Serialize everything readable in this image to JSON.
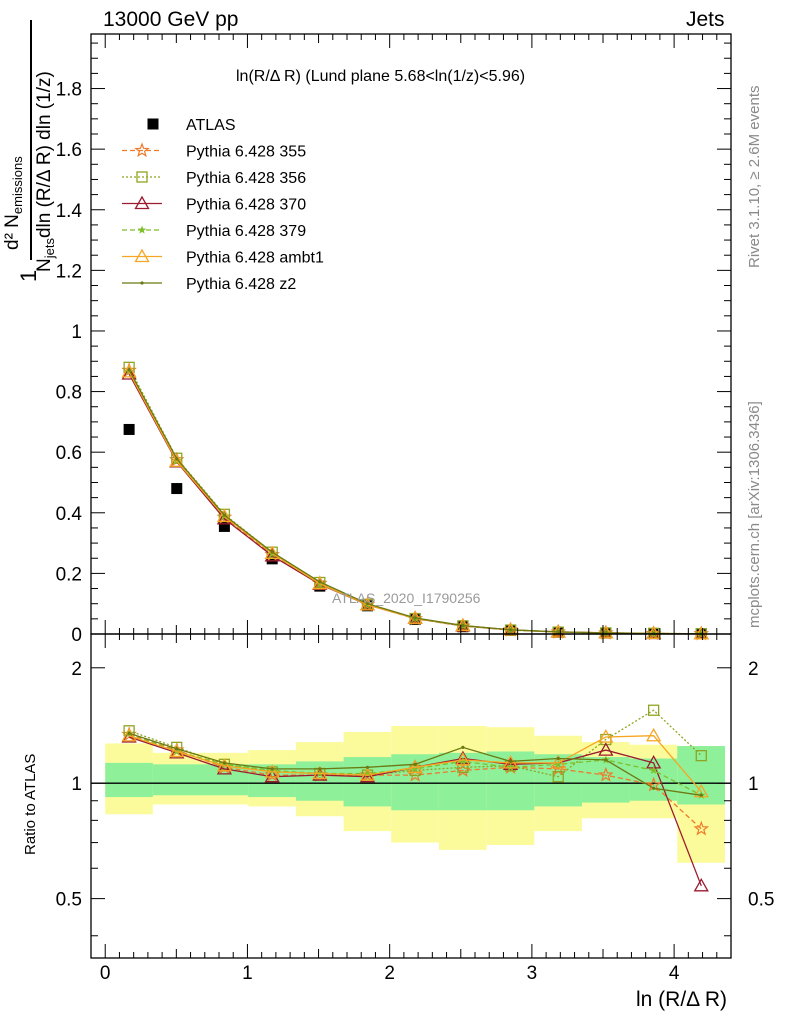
{
  "header": {
    "left": "13000 GeV pp",
    "right": "Jets"
  },
  "side_labels": {
    "rivet": "Rivet 3.1.10, ≥ 2.6M events",
    "mcplots": "mcplots.cern.ch [arXiv:1306.3436]"
  },
  "plot_title": "ln(R/Δ R) (Lund plane 5.68<ln(1/z)<5.96)",
  "watermark": "ATLAS_2020_I1790256",
  "y_label_main": {
    "numerator": "d² N",
    "numerator_sub": "emissions",
    "denominator": "N",
    "denominator_sub": "jets",
    "denominator_rest": "dln (R/Δ R) dln (1/z)",
    "prefactor": "1"
  },
  "y_label_ratio": "Ratio to ATLAS",
  "x_label": "ln (R/Δ R)",
  "colors": {
    "atlas": "#000000",
    "p355": "#ee7a2a",
    "p356": "#8ea522",
    "p370": "#9b1b2f",
    "p379": "#7fbf2a",
    "ambt1": "#f5a623",
    "z2": "#6b7a12",
    "band_green": "#8ff09a",
    "band_yellow": "#fbfb9c"
  },
  "chart_data": [
    {
      "type": "scatter",
      "panel": "main",
      "xlim": [
        -0.1,
        4.4
      ],
      "ylim": [
        0,
        1.98
      ],
      "yticks": [
        0,
        0.2,
        0.4,
        0.6,
        0.8,
        1,
        1.2,
        1.4,
        1.6,
        1.8
      ],
      "ytick_labels": [
        "0",
        "0.2",
        "0.4",
        "0.6",
        "0.8",
        "1",
        "1.2",
        "1.4",
        "1.6",
        "1.8"
      ],
      "x": [
        0.168,
        0.503,
        0.838,
        1.174,
        1.509,
        1.844,
        2.179,
        2.515,
        2.85,
        3.185,
        3.52,
        3.856,
        4.191
      ],
      "series": [
        {
          "name": "ATLAS",
          "key": "atlas",
          "style": "marker",
          "values": [
            0.675,
            0.48,
            0.355,
            0.248,
            0.158,
            0.093,
            0.048,
            0.024,
            0.012,
            0.006,
            0.003,
            0.0015,
            0.0007
          ]
        },
        {
          "name": "Pythia 6.428 355",
          "key": "p355",
          "style": "dashed",
          "marker": "star",
          "values": [
            0.87,
            0.575,
            0.385,
            0.262,
            0.167,
            0.097,
            0.05,
            0.026,
            0.013,
            0.0065,
            0.0032,
            0.0015,
            0.0005
          ]
        },
        {
          "name": "Pythia 6.428 356",
          "key": "p356",
          "style": "dotted",
          "marker": "square",
          "values": [
            0.88,
            0.58,
            0.395,
            0.27,
            0.17,
            0.098,
            0.051,
            0.027,
            0.013,
            0.0062,
            0.0035,
            0.0023,
            0.0008
          ]
        },
        {
          "name": "Pythia 6.428 370",
          "key": "p370",
          "style": "solid",
          "marker": "triangle",
          "values": [
            0.858,
            0.568,
            0.38,
            0.258,
            0.164,
            0.096,
            0.052,
            0.027,
            0.0135,
            0.0068,
            0.0037,
            0.0017,
            0.0004
          ]
        },
        {
          "name": "Pythia 6.428 379",
          "key": "p379",
          "style": "dashed",
          "marker": "smallstar",
          "values": [
            0.868,
            0.572,
            0.39,
            0.265,
            0.166,
            0.097,
            0.051,
            0.027,
            0.0133,
            0.0067,
            0.0034,
            0.0015,
            0.0006
          ]
        },
        {
          "name": "Pythia 6.428 ambt1",
          "key": "ambt1",
          "style": "solid",
          "marker": "triangle",
          "values": [
            0.865,
            0.57,
            0.388,
            0.266,
            0.166,
            0.096,
            0.052,
            0.028,
            0.0136,
            0.0068,
            0.0039,
            0.002,
            0.0007
          ]
        },
        {
          "name": "Pythia 6.428 z2",
          "key": "z2",
          "style": "solid",
          "marker": "dot",
          "values": [
            0.872,
            0.578,
            0.392,
            0.27,
            0.172,
            0.1,
            0.053,
            0.028,
            0.0138,
            0.0069,
            0.0036,
            0.0018,
            0.0006
          ]
        }
      ]
    },
    {
      "type": "scatter",
      "panel": "ratio",
      "xlim": [
        -0.1,
        4.4
      ],
      "ylim": [
        0.35,
        2.45
      ],
      "yscale": "log",
      "yticks": [
        0.5,
        1,
        2
      ],
      "ytick_labels": [
        "0.5",
        "1",
        "2"
      ],
      "xticks": [
        0,
        1,
        2,
        3,
        4
      ],
      "xtick_labels": [
        "0",
        "1",
        "2",
        "3",
        "4"
      ],
      "bin_edges": [
        0.0,
        0.335,
        0.67,
        1.005,
        1.341,
        1.676,
        2.011,
        2.346,
        2.682,
        3.017,
        3.352,
        3.687,
        4.022,
        4.358
      ],
      "band_green": [
        [
          0.92,
          1.13
        ],
        [
          0.93,
          1.12
        ],
        [
          0.93,
          1.12
        ],
        [
          0.92,
          1.12
        ],
        [
          0.9,
          1.14
        ],
        [
          0.87,
          1.17
        ],
        [
          0.85,
          1.19
        ],
        [
          0.85,
          1.2
        ],
        [
          0.85,
          1.21
        ],
        [
          0.87,
          1.19
        ],
        [
          0.89,
          1.17
        ],
        [
          0.9,
          1.16
        ],
        [
          0.88,
          1.25
        ]
      ],
      "band_yellow": [
        [
          0.83,
          1.27
        ],
        [
          0.88,
          1.2
        ],
        [
          0.88,
          1.2
        ],
        [
          0.87,
          1.22
        ],
        [
          0.82,
          1.28
        ],
        [
          0.75,
          1.36
        ],
        [
          0.7,
          1.41
        ],
        [
          0.67,
          1.41
        ],
        [
          0.69,
          1.4
        ],
        [
          0.75,
          1.33
        ],
        [
          0.81,
          1.28
        ],
        [
          0.81,
          1.26
        ],
        [
          0.62,
          1.25
        ]
      ],
      "x": [
        0.168,
        0.503,
        0.838,
        1.174,
        1.509,
        1.844,
        2.179,
        2.515,
        2.85,
        3.185,
        3.52,
        3.856,
        4.191
      ],
      "series": [
        {
          "name": "Pythia 6.428 355",
          "key": "p355",
          "style": "dashed",
          "marker": "star",
          "values": [
            1.34,
            1.22,
            1.1,
            1.05,
            1.05,
            1.05,
            1.05,
            1.08,
            1.1,
            1.09,
            1.05,
            0.99,
            0.76
          ]
        },
        {
          "name": "Pythia 6.428 356",
          "key": "p356",
          "style": "dotted",
          "marker": "square",
          "values": [
            1.37,
            1.24,
            1.12,
            1.07,
            1.06,
            1.05,
            1.08,
            1.1,
            1.11,
            1.04,
            1.3,
            1.55,
            1.18
          ]
        },
        {
          "name": "Pythia 6.428 370",
          "key": "p370",
          "style": "solid",
          "marker": "triangle",
          "values": [
            1.32,
            1.2,
            1.09,
            1.04,
            1.05,
            1.04,
            1.1,
            1.16,
            1.12,
            1.13,
            1.22,
            1.13,
            0.54
          ]
        },
        {
          "name": "Pythia 6.428 379",
          "key": "p379",
          "style": "dashed",
          "marker": "smallstar",
          "values": [
            1.35,
            1.21,
            1.12,
            1.08,
            1.06,
            1.06,
            1.09,
            1.14,
            1.1,
            1.12,
            1.15,
            1.08,
            0.93
          ]
        },
        {
          "name": "Pythia 6.428 ambt1",
          "key": "ambt1",
          "style": "solid",
          "marker": "triangle",
          "values": [
            1.33,
            1.21,
            1.11,
            1.07,
            1.06,
            1.05,
            1.1,
            1.15,
            1.13,
            1.13,
            1.32,
            1.33,
            0.95
          ]
        },
        {
          "name": "Pythia 6.428 z2",
          "key": "z2",
          "style": "solid",
          "marker": "dot",
          "values": [
            1.35,
            1.23,
            1.13,
            1.09,
            1.09,
            1.1,
            1.12,
            1.24,
            1.14,
            1.16,
            1.15,
            0.97,
            0.93
          ]
        }
      ]
    }
  ]
}
